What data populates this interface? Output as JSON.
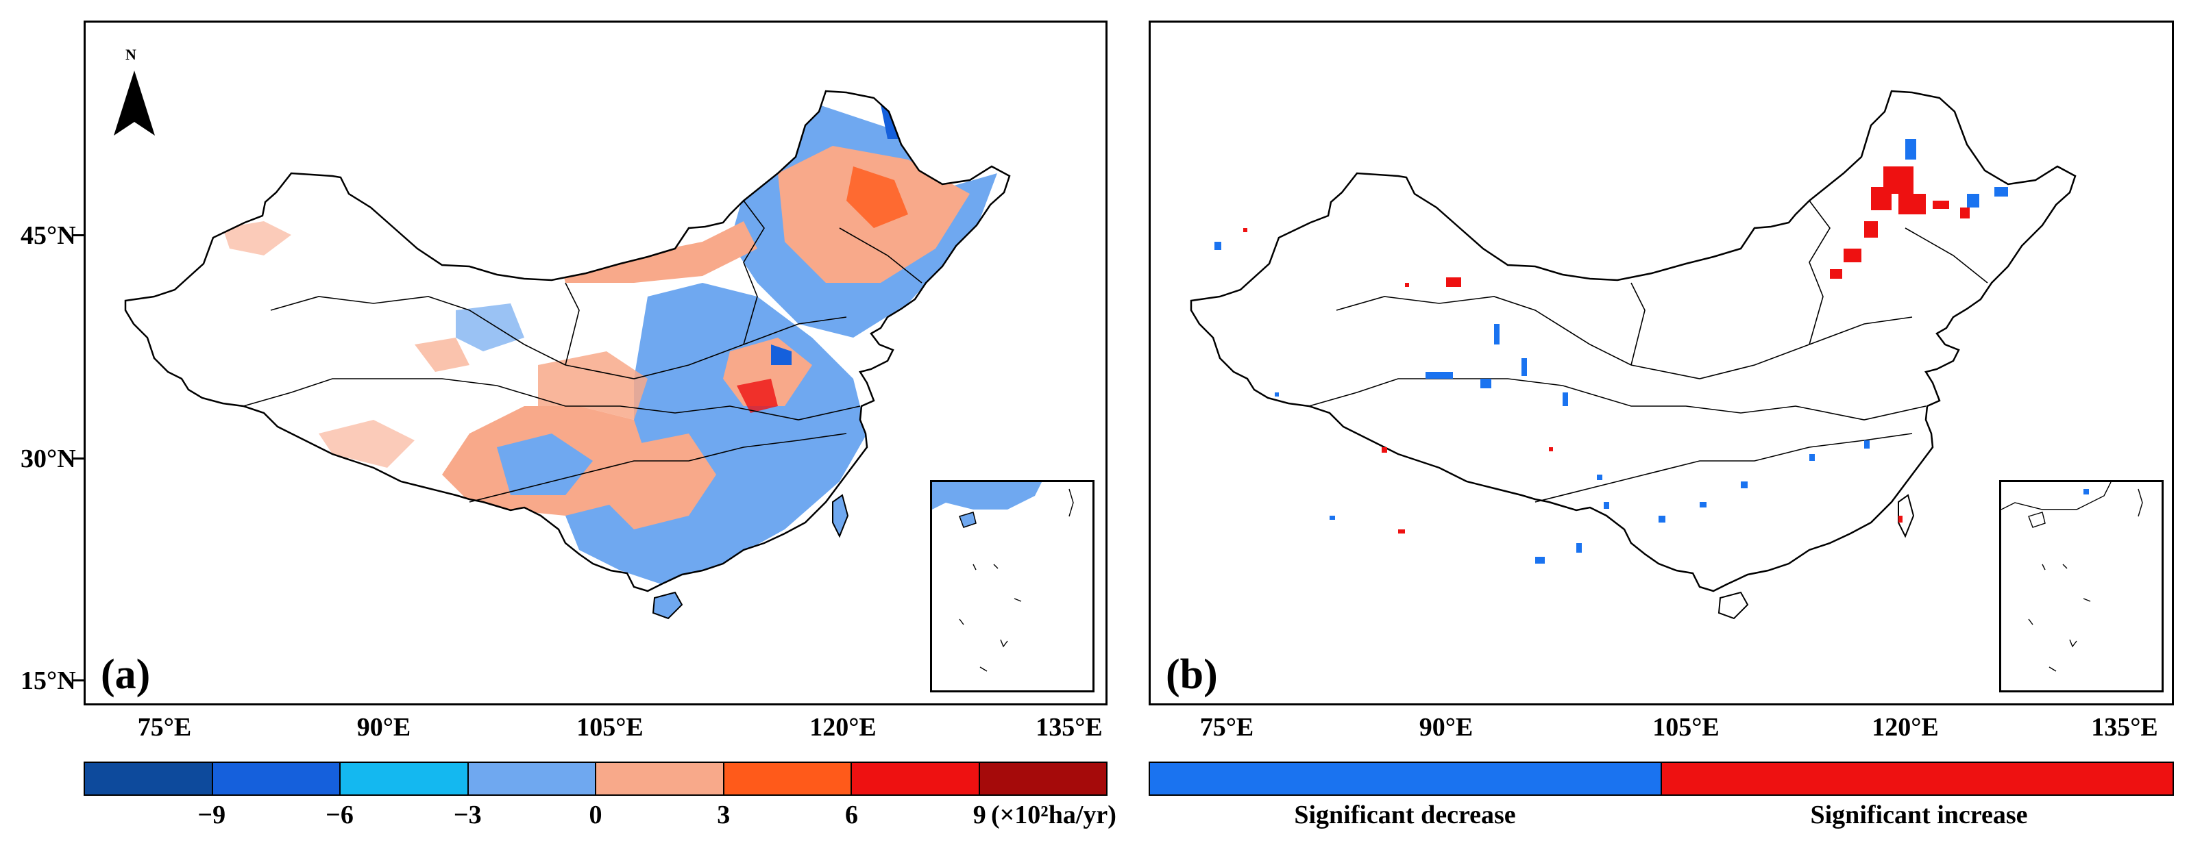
{
  "panels": {
    "a": {
      "label": "(a)"
    },
    "b": {
      "label": "(b)"
    }
  },
  "north_arrow": {
    "label": "N"
  },
  "latitude_labels": [
    "45°N",
    "30°N",
    "15°N"
  ],
  "longitude_labels": [
    "75°E",
    "90°E",
    "105°E",
    "120°E",
    "135°E"
  ],
  "legend_trend": {
    "colors": [
      "#0d4a9c",
      "#1560dc",
      "#14b8f0",
      "#6fa8f0",
      "#f8a98a",
      "#ff5a1a",
      "#ee1111",
      "#a50a0a"
    ],
    "tick_labels": [
      "−9",
      "−6",
      "−3",
      "0",
      "3",
      "6",
      "9"
    ],
    "unit": "(×10²ha/yr)"
  },
  "legend_significance": {
    "colors": [
      "#1a73f0",
      "#ee1111"
    ],
    "labels": [
      "Significant decrease",
      "Significant increase"
    ]
  },
  "colors": {
    "decrease_light": "#6fa8f0",
    "decrease_mid": "#1560dc",
    "increase_light": "#f8a98a",
    "increase_mid": "#ff5a1a",
    "increase_strong": "#ee1111",
    "significant_decrease": "#1a73f0",
    "significant_increase": "#ee1111"
  }
}
